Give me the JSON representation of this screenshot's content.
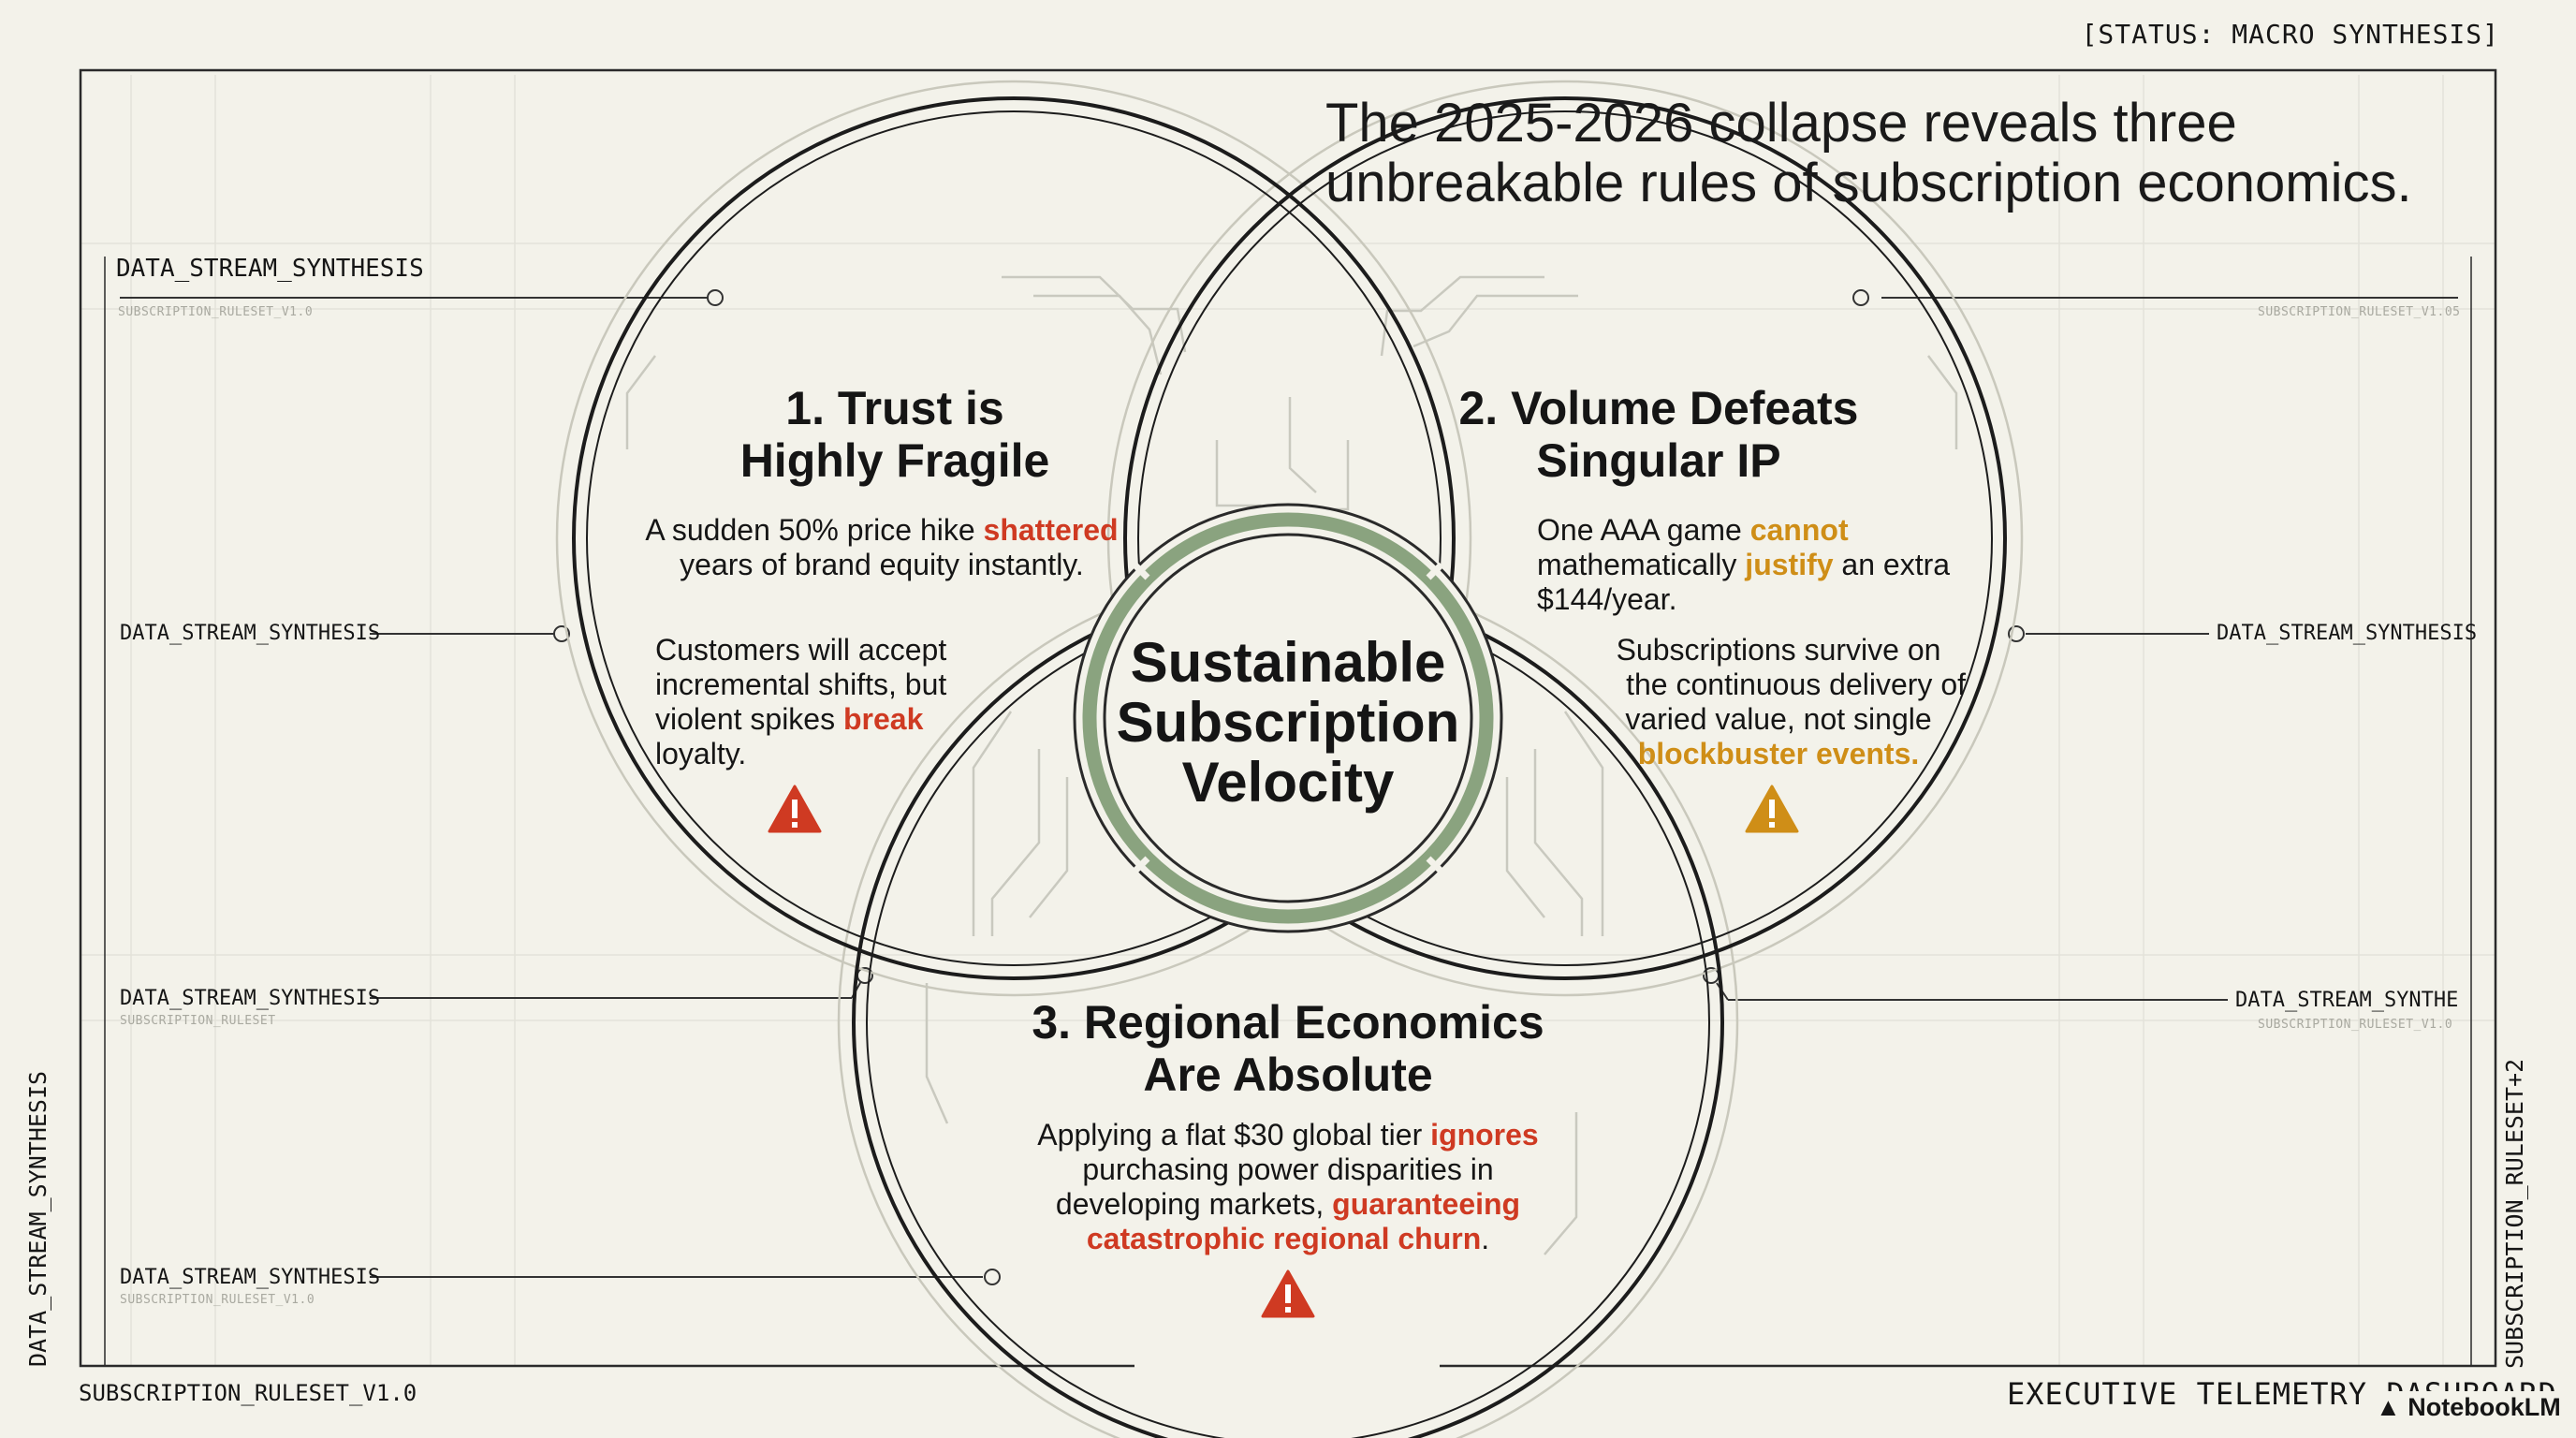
{
  "status": "[STATUS: MACRO SYNTHESIS]",
  "headline": {
    "line1": "The 2025-2026 collapse reveals three",
    "line2": "unbreakable rules of subscription economics."
  },
  "labels": {
    "stream": "DATA_STREAM_SYNTHESIS",
    "stream_cut": "DATA_STREAM_SYNTHE",
    "ruleset_small_left": "SUBSCRIPTION_RULESET_V1.0",
    "ruleset_small_right": "SUBSCRIPTION_RULESET_V1.05",
    "ruleset_small_mid_left": "SUBSCRIPTION_RULESET",
    "ruleset_small_mid_right": "SUBSCRIPTION_RULESET_V1.0",
    "ruleset_small_bottom": "SUBSCRIPTION_RULESET_V1.0",
    "vertical_left": "DATA_STREAM_SYNTHESIS",
    "vertical_right": "SUBSCRIPTION_RULESET+2",
    "footer_left": "SUBSCRIPTION_RULESET_V1.0",
    "footer_right": "EXECUTIVE TELEMETRY DASHBOARD",
    "brand": "NotebookLM"
  },
  "center": {
    "line1": "Sustainable",
    "line2": "Subscription",
    "line3": "Velocity"
  },
  "rule1": {
    "title1": "1. Trust is",
    "title2": "Highly Fragile",
    "p1a": "A sudden 50% price hike ",
    "p1b": "shattered",
    "p1c": "years of brand equity instantly.",
    "p2a": "Customers will accept",
    "p2b": "incremental shifts, but",
    "p2c": "violent spikes ",
    "p2d": "break",
    "p2e": "loyalty."
  },
  "rule2": {
    "title1": "2. Volume Defeats",
    "title2": "Singular IP",
    "p1a": "One AAA game ",
    "p1b": "cannot",
    "p1c": "mathematically ",
    "p1d": "justify",
    "p1e": " an extra",
    "p1f": "$144/year.",
    "p2a": "Subscriptions survive on",
    "p2b": "the continuous delivery of",
    "p2c": "varied value, not single",
    "p2d": "blockbuster events."
  },
  "rule3": {
    "title1": "3. Regional Economics",
    "title2": "Are Absolute",
    "p1a": "Applying a flat $30 global tier ",
    "p1b": "ignores",
    "p1c": "purchasing power disparities in",
    "p1d": "developing markets, ",
    "p1e": "guaranteeing",
    "p1f": "catastrophic regional churn",
    "p1g": "."
  },
  "colors": {
    "danger": "#cf3a22",
    "caution": "#cf8e17",
    "ring": "#8aa37f",
    "background": "#f3f2ea"
  },
  "icons": [
    "warning-icon",
    "warning-icon",
    "warning-icon",
    "notebook-icon"
  ]
}
